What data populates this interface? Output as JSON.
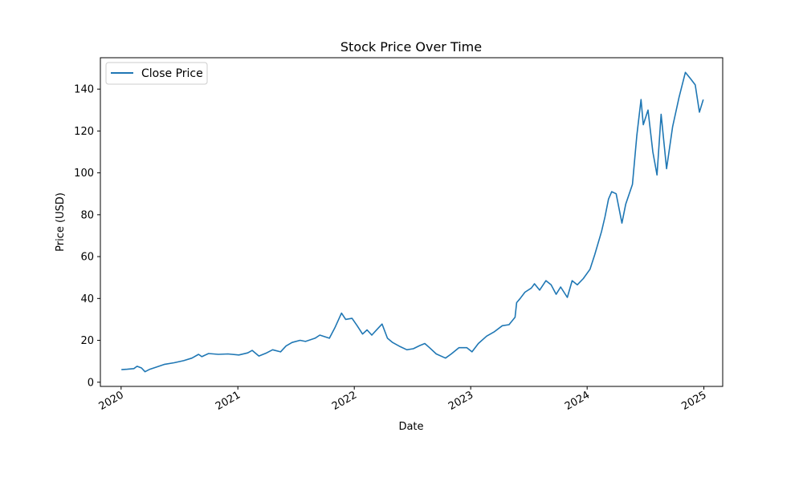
{
  "chart_data": {
    "type": "line",
    "title": "Stock Price Over Time",
    "xlabel": "Date",
    "ylabel": "Price (USD)",
    "xlim": [
      "2019-10-28",
      "2025-03-01"
    ],
    "ylim": [
      -2,
      155
    ],
    "x_ticks": [
      {
        "label": "2020",
        "date": "2020-01-01"
      },
      {
        "label": "2021",
        "date": "2021-01-01"
      },
      {
        "label": "2022",
        "date": "2022-01-01"
      },
      {
        "label": "2023",
        "date": "2023-01-01"
      },
      {
        "label": "2024",
        "date": "2024-01-01"
      },
      {
        "label": "2025",
        "date": "2025-01-01"
      }
    ],
    "y_ticks": [
      0,
      20,
      40,
      60,
      80,
      100,
      120,
      140
    ],
    "grid": false,
    "legend": {
      "position": "top-left",
      "entries": [
        "Close Price"
      ]
    },
    "colors": {
      "series": "#1f77b4"
    },
    "series": [
      {
        "name": "Close Price",
        "points": [
          [
            "2020-01-02",
            6.0
          ],
          [
            "2020-01-20",
            6.2
          ],
          [
            "2020-02-10",
            6.5
          ],
          [
            "2020-02-20",
            7.6
          ],
          [
            "2020-03-05",
            6.8
          ],
          [
            "2020-03-16",
            5.0
          ],
          [
            "2020-03-31",
            6.2
          ],
          [
            "2020-04-20",
            7.2
          ],
          [
            "2020-05-15",
            8.5
          ],
          [
            "2020-06-15",
            9.3
          ],
          [
            "2020-07-15",
            10.3
          ],
          [
            "2020-08-10",
            11.5
          ],
          [
            "2020-08-31",
            13.3
          ],
          [
            "2020-09-10",
            12.2
          ],
          [
            "2020-10-01",
            13.7
          ],
          [
            "2020-11-01",
            13.3
          ],
          [
            "2020-12-01",
            13.5
          ],
          [
            "2021-01-04",
            13.0
          ],
          [
            "2021-02-01",
            14.0
          ],
          [
            "2021-02-15",
            15.2
          ],
          [
            "2021-03-08",
            12.5
          ],
          [
            "2021-04-01",
            14.0
          ],
          [
            "2021-04-20",
            15.5
          ],
          [
            "2021-05-15",
            14.5
          ],
          [
            "2021-06-01",
            17.3
          ],
          [
            "2021-06-20",
            19.0
          ],
          [
            "2021-07-15",
            20.0
          ],
          [
            "2021-08-01",
            19.5
          ],
          [
            "2021-08-31",
            21.0
          ],
          [
            "2021-09-15",
            22.5
          ],
          [
            "2021-10-15",
            21.0
          ],
          [
            "2021-11-01",
            26.0
          ],
          [
            "2021-11-22",
            33.0
          ],
          [
            "2021-12-05",
            30.0
          ],
          [
            "2021-12-25",
            30.5
          ],
          [
            "2022-01-10",
            27.0
          ],
          [
            "2022-01-27",
            23.0
          ],
          [
            "2022-02-10",
            25.0
          ],
          [
            "2022-02-25",
            22.5
          ],
          [
            "2022-03-15",
            25.5
          ],
          [
            "2022-03-29",
            27.8
          ],
          [
            "2022-04-15",
            21.0
          ],
          [
            "2022-05-01",
            19.0
          ],
          [
            "2022-05-25",
            17.0
          ],
          [
            "2022-06-15",
            15.5
          ],
          [
            "2022-07-05",
            16.0
          ],
          [
            "2022-07-25",
            17.5
          ],
          [
            "2022-08-10",
            18.5
          ],
          [
            "2022-08-25",
            16.5
          ],
          [
            "2022-09-15",
            13.5
          ],
          [
            "2022-10-14",
            11.5
          ],
          [
            "2022-11-01",
            13.5
          ],
          [
            "2022-11-25",
            16.5
          ],
          [
            "2022-12-20",
            16.5
          ],
          [
            "2023-01-05",
            14.5
          ],
          [
            "2023-01-25",
            18.5
          ],
          [
            "2023-02-20",
            22.0
          ],
          [
            "2023-03-15",
            24.0
          ],
          [
            "2023-04-10",
            27.0
          ],
          [
            "2023-05-01",
            27.5
          ],
          [
            "2023-05-20",
            31.0
          ],
          [
            "2023-05-25",
            38.0
          ],
          [
            "2023-06-05",
            40.0
          ],
          [
            "2023-06-20",
            43.0
          ],
          [
            "2023-07-10",
            45.0
          ],
          [
            "2023-07-20",
            47.0
          ],
          [
            "2023-08-05",
            44.0
          ],
          [
            "2023-08-25",
            48.5
          ],
          [
            "2023-09-10",
            46.5
          ],
          [
            "2023-09-26",
            42.0
          ],
          [
            "2023-10-10",
            45.5
          ],
          [
            "2023-10-31",
            40.5
          ],
          [
            "2023-11-15",
            48.5
          ],
          [
            "2023-12-01",
            46.5
          ],
          [
            "2023-12-20",
            49.5
          ],
          [
            "2024-01-10",
            54.0
          ],
          [
            "2024-01-25",
            61.0
          ],
          [
            "2024-02-15",
            72.0
          ],
          [
            "2024-02-26",
            79.0
          ],
          [
            "2024-03-08",
            87.5
          ],
          [
            "2024-03-18",
            91.0
          ],
          [
            "2024-04-01",
            90.0
          ],
          [
            "2024-04-19",
            76.0
          ],
          [
            "2024-05-01",
            85.0
          ],
          [
            "2024-05-22",
            94.5
          ],
          [
            "2024-06-05",
            118.0
          ],
          [
            "2024-06-18",
            135.0
          ],
          [
            "2024-06-25",
            123.0
          ],
          [
            "2024-07-10",
            130.0
          ],
          [
            "2024-07-25",
            110.0
          ],
          [
            "2024-08-07",
            99.0
          ],
          [
            "2024-08-20",
            128.0
          ],
          [
            "2024-09-06",
            102.0
          ],
          [
            "2024-09-25",
            122.0
          ],
          [
            "2024-10-15",
            136.0
          ],
          [
            "2024-11-04",
            148.0
          ],
          [
            "2024-11-20",
            145.0
          ],
          [
            "2024-12-05",
            142.0
          ],
          [
            "2024-12-18",
            129.0
          ],
          [
            "2024-12-30",
            135.0
          ]
        ]
      }
    ]
  }
}
